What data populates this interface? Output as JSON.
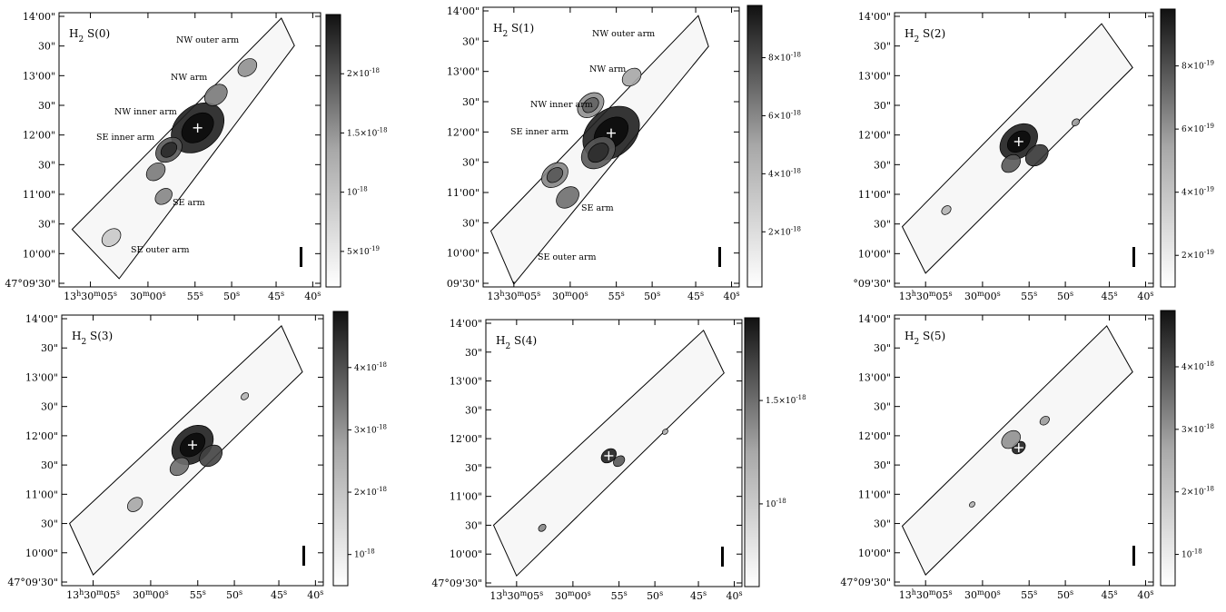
{
  "panels": [
    {
      "title_base": "H",
      "title_sub": "2",
      "title_rest": " S(0)",
      "y_ticks": [
        "14'00\"",
        "30\"",
        "13'00\"",
        "30\"",
        "12'00\"",
        "30\"",
        "11'00\"",
        "30\"",
        "10'00\"",
        "47°09'30\""
      ],
      "x_ticks": [
        "13h30m05s",
        "30m00s",
        "55s",
        "50s",
        "45s",
        "40s"
      ],
      "colorbar": {
        "min_value": 2e-19,
        "max_value": 2.5e-18,
        "ticks": [
          "2×10-18",
          "1.5×10-18",
          "10-18",
          "5×10-19"
        ]
      },
      "annotations": [
        "NW outer arm",
        "NW arm",
        "NW inner arm",
        "SE inner arm",
        "SE arm",
        "SE outer arm"
      ]
    },
    {
      "title_base": "H",
      "title_sub": "2",
      "title_rest": " S(1)",
      "y_ticks": [
        "14'00\"",
        "30\"",
        "13'00\"",
        "30\"",
        "12'00\"",
        "30\"",
        "11'00\"",
        "30\"",
        "10'00\"",
        "09'30\""
      ],
      "x_ticks": [
        "13h30m05s",
        "30m00s",
        "55s",
        "50s",
        "45s",
        "40s"
      ],
      "colorbar": {
        "min_value": 1e-19,
        "max_value": 9.8e-18,
        "ticks": [
          "8×10-18",
          "6×10-18",
          "4×10-18",
          "2×10-18"
        ]
      },
      "annotations": [
        "NW outer arm",
        "NW arm",
        "NW inner arm",
        "SE inner arm",
        "SE arm",
        "SE outer arm"
      ]
    },
    {
      "title_base": "H",
      "title_sub": "2",
      "title_rest": " S(2)",
      "y_ticks": [
        "14'00\"",
        "30\"",
        "13'00\"",
        "30\"",
        "12'00\"",
        "30\"",
        "11'00\"",
        "30\"",
        "10'00\"",
        "°09'30\""
      ],
      "x_ticks": [
        "13h30m05s",
        "30m00s",
        "55s",
        "50s",
        "45s",
        "40s"
      ],
      "colorbar": {
        "min_value": 1e-19,
        "max_value": 9.8e-19,
        "ticks": [
          "8×10-19",
          "6×10-19",
          "4×10-19",
          "2×10-19"
        ]
      },
      "annotations": []
    },
    {
      "title_base": "H",
      "title_sub": "2",
      "title_rest": " S(3)",
      "y_ticks": [
        "14'00\"",
        "30\"",
        "13'00\"",
        "30\"",
        "12'00\"",
        "30\"",
        "11'00\"",
        "30\"",
        "10'00\"",
        "47°09'30\""
      ],
      "x_ticks": [
        "13h30m05s",
        "30m00s",
        "55s",
        "50s",
        "45s",
        "40s"
      ],
      "colorbar": {
        "min_value": 5e-19,
        "max_value": 4.9e-18,
        "ticks": [
          "4×10-18",
          "3×10-18",
          "2×10-18",
          "10-18"
        ]
      },
      "annotations": []
    },
    {
      "title_base": "H",
      "title_sub": "2",
      "title_rest": " S(4)",
      "y_ticks": [
        "14'00\"",
        "30\"",
        "13'00\"",
        "30\"",
        "12'00\"",
        "30\"",
        "11'00\"",
        "30\"",
        "10'00\"",
        "47°09'30\""
      ],
      "x_ticks": [
        "13h30m05s",
        "30m00s",
        "55s",
        "50s",
        "45s",
        "40s"
      ],
      "colorbar": {
        "min_value": 6e-19,
        "max_value": 1.9e-18,
        "ticks": [
          "1.5×10-18",
          "10-18"
        ]
      },
      "annotations": []
    },
    {
      "title_base": "H",
      "title_sub": "2",
      "title_rest": " S(5)",
      "y_ticks": [
        "14'00\"",
        "30\"",
        "13'00\"",
        "30\"",
        "12'00\"",
        "30\"",
        "11'00\"",
        "30\"",
        "10'00\"",
        "47°09'30\""
      ],
      "x_ticks": [
        "13h30m05s",
        "30m00s",
        "55s",
        "50s",
        "45s",
        "40s"
      ],
      "colorbar": {
        "min_value": 5e-19,
        "max_value": 4.9e-18,
        "ticks": [
          "4×10-18",
          "3×10-18",
          "2×10-18",
          "10-18"
        ]
      },
      "annotations": []
    }
  ]
}
